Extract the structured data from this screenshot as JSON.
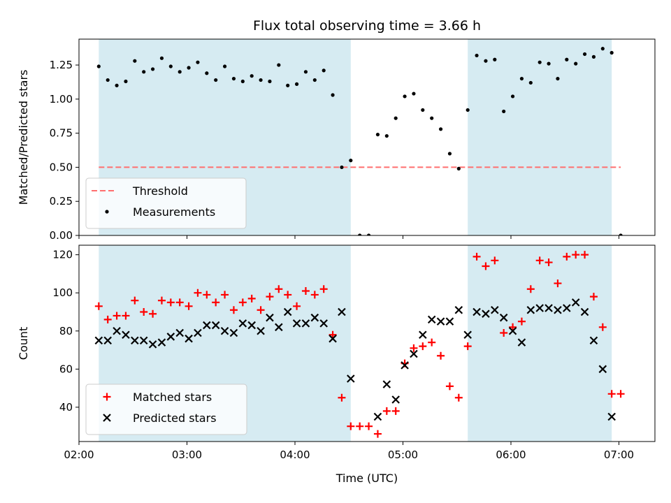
{
  "chart_data": {
    "type": "scatter",
    "title": "Flux total observing time = 3.66 h",
    "xlabel": "Time (UTC)",
    "x_unit": "hours UTC",
    "xlim": [
      "02:00",
      "07:20"
    ],
    "xticks": [
      {
        "value": "02:00",
        "label": "02:00"
      },
      {
        "value": "03:00",
        "label": "03:00"
      },
      {
        "value": "04:00",
        "label": "04:00"
      },
      {
        "value": "05:00",
        "label": "05:00"
      },
      {
        "value": "06:00",
        "label": "06:00"
      },
      {
        "value": "07:00",
        "label": "07:00"
      }
    ],
    "shaded_regions": [
      {
        "start": "02:11",
        "end": "04:31",
        "color": "#add8e6"
      },
      {
        "start": "05:36",
        "end": "06:56",
        "color": "#add8e6"
      }
    ],
    "panels": [
      {
        "ylabel": "Matched/Predicted stars",
        "ylim": [
          0,
          1.44
        ],
        "yticks": [
          {
            "value": 0.0,
            "label": "0.00"
          },
          {
            "value": 0.25,
            "label": "0.25"
          },
          {
            "value": 0.5,
            "label": "0.50"
          },
          {
            "value": 0.75,
            "label": "0.75"
          },
          {
            "value": 1.0,
            "label": "1.00"
          },
          {
            "value": 1.25,
            "label": "1.25"
          }
        ],
        "legend_position": "lower-left",
        "series": [
          {
            "name": "Threshold",
            "kind": "line",
            "color": "#ff6e6e",
            "style": "dashed",
            "points": [
              {
                "x": "02:11",
                "y": 0.5
              },
              {
                "x": "07:01",
                "y": 0.5
              }
            ]
          },
          {
            "name": "Measurements",
            "kind": "dot",
            "color": "#000000",
            "points": [
              {
                "x": "02:11",
                "y": 1.24
              },
              {
                "x": "02:16",
                "y": 1.14
              },
              {
                "x": "02:21",
                "y": 1.1
              },
              {
                "x": "02:26",
                "y": 1.13
              },
              {
                "x": "02:31",
                "y": 1.28
              },
              {
                "x": "02:36",
                "y": 1.2
              },
              {
                "x": "02:41",
                "y": 1.22
              },
              {
                "x": "02:46",
                "y": 1.3
              },
              {
                "x": "02:51",
                "y": 1.24
              },
              {
                "x": "02:56",
                "y": 1.2
              },
              {
                "x": "03:01",
                "y": 1.23
              },
              {
                "x": "03:06",
                "y": 1.27
              },
              {
                "x": "03:11",
                "y": 1.19
              },
              {
                "x": "03:16",
                "y": 1.14
              },
              {
                "x": "03:21",
                "y": 1.24
              },
              {
                "x": "03:26",
                "y": 1.15
              },
              {
                "x": "03:31",
                "y": 1.13
              },
              {
                "x": "03:36",
                "y": 1.17
              },
              {
                "x": "03:41",
                "y": 1.14
              },
              {
                "x": "03:46",
                "y": 1.13
              },
              {
                "x": "03:51",
                "y": 1.25
              },
              {
                "x": "03:56",
                "y": 1.1
              },
              {
                "x": "04:01",
                "y": 1.11
              },
              {
                "x": "04:06",
                "y": 1.2
              },
              {
                "x": "04:11",
                "y": 1.14
              },
              {
                "x": "04:16",
                "y": 1.21
              },
              {
                "x": "04:21",
                "y": 1.03
              },
              {
                "x": "04:26",
                "y": 0.5
              },
              {
                "x": "04:31",
                "y": 0.55
              },
              {
                "x": "04:36",
                "y": 0.0
              },
              {
                "x": "04:41",
                "y": 0.0
              },
              {
                "x": "04:46",
                "y": 0.74
              },
              {
                "x": "04:51",
                "y": 0.73
              },
              {
                "x": "04:56",
                "y": 0.86
              },
              {
                "x": "05:01",
                "y": 1.02
              },
              {
                "x": "05:06",
                "y": 1.04
              },
              {
                "x": "05:11",
                "y": 0.92
              },
              {
                "x": "05:16",
                "y": 0.86
              },
              {
                "x": "05:21",
                "y": 0.78
              },
              {
                "x": "05:26",
                "y": 0.6
              },
              {
                "x": "05:31",
                "y": 0.49
              },
              {
                "x": "05:36",
                "y": 0.92
              },
              {
                "x": "05:41",
                "y": 1.32
              },
              {
                "x": "05:46",
                "y": 1.28
              },
              {
                "x": "05:51",
                "y": 1.29
              },
              {
                "x": "05:56",
                "y": 0.91
              },
              {
                "x": "06:01",
                "y": 1.02
              },
              {
                "x": "06:06",
                "y": 1.15
              },
              {
                "x": "06:11",
                "y": 1.12
              },
              {
                "x": "06:16",
                "y": 1.27
              },
              {
                "x": "06:21",
                "y": 1.26
              },
              {
                "x": "06:26",
                "y": 1.15
              },
              {
                "x": "06:31",
                "y": 1.29
              },
              {
                "x": "06:36",
                "y": 1.26
              },
              {
                "x": "06:41",
                "y": 1.33
              },
              {
                "x": "06:46",
                "y": 1.31
              },
              {
                "x": "06:51",
                "y": 1.37
              },
              {
                "x": "06:56",
                "y": 1.34
              },
              {
                "x": "07:01",
                "y": 0.0
              }
            ]
          }
        ]
      },
      {
        "ylabel": "Count",
        "ylim": [
          22,
          125
        ],
        "yticks": [
          {
            "value": 40,
            "label": "40"
          },
          {
            "value": 60,
            "label": "60"
          },
          {
            "value": 80,
            "label": "80"
          },
          {
            "value": 100,
            "label": "100"
          },
          {
            "value": 120,
            "label": "120"
          }
        ],
        "legend_position": "lower-left",
        "series": [
          {
            "name": "Matched stars",
            "kind": "plus",
            "color": "#ff0000",
            "points": [
              {
                "x": "02:11",
                "y": 93
              },
              {
                "x": "02:16",
                "y": 86
              },
              {
                "x": "02:21",
                "y": 88
              },
              {
                "x": "02:26",
                "y": 88
              },
              {
                "x": "02:31",
                "y": 96
              },
              {
                "x": "02:36",
                "y": 90
              },
              {
                "x": "02:41",
                "y": 89
              },
              {
                "x": "02:46",
                "y": 96
              },
              {
                "x": "02:51",
                "y": 95
              },
              {
                "x": "02:56",
                "y": 95
              },
              {
                "x": "03:01",
                "y": 93
              },
              {
                "x": "03:06",
                "y": 100
              },
              {
                "x": "03:11",
                "y": 99
              },
              {
                "x": "03:16",
                "y": 95
              },
              {
                "x": "03:21",
                "y": 99
              },
              {
                "x": "03:26",
                "y": 91
              },
              {
                "x": "03:31",
                "y": 95
              },
              {
                "x": "03:36",
                "y": 97
              },
              {
                "x": "03:41",
                "y": 91
              },
              {
                "x": "03:46",
                "y": 98
              },
              {
                "x": "03:51",
                "y": 102
              },
              {
                "x": "03:56",
                "y": 99
              },
              {
                "x": "04:01",
                "y": 93
              },
              {
                "x": "04:06",
                "y": 101
              },
              {
                "x": "04:11",
                "y": 99
              },
              {
                "x": "04:16",
                "y": 102
              },
              {
                "x": "04:21",
                "y": 78
              },
              {
                "x": "04:26",
                "y": 45
              },
              {
                "x": "04:31",
                "y": 30
              },
              {
                "x": "04:36",
                "y": 30
              },
              {
                "x": "04:41",
                "y": 30
              },
              {
                "x": "04:46",
                "y": 26
              },
              {
                "x": "04:51",
                "y": 38
              },
              {
                "x": "04:56",
                "y": 38
              },
              {
                "x": "05:01",
                "y": 63
              },
              {
                "x": "05:06",
                "y": 71
              },
              {
                "x": "05:11",
                "y": 72
              },
              {
                "x": "05:16",
                "y": 74
              },
              {
                "x": "05:21",
                "y": 67
              },
              {
                "x": "05:26",
                "y": 51
              },
              {
                "x": "05:31",
                "y": 45
              },
              {
                "x": "05:36",
                "y": 72
              },
              {
                "x": "05:41",
                "y": 119
              },
              {
                "x": "05:46",
                "y": 114
              },
              {
                "x": "05:51",
                "y": 117
              },
              {
                "x": "05:56",
                "y": 79
              },
              {
                "x": "06:01",
                "y": 82
              },
              {
                "x": "06:06",
                "y": 85
              },
              {
                "x": "06:11",
                "y": 102
              },
              {
                "x": "06:16",
                "y": 117
              },
              {
                "x": "06:21",
                "y": 116
              },
              {
                "x": "06:26",
                "y": 105
              },
              {
                "x": "06:31",
                "y": 119
              },
              {
                "x": "06:36",
                "y": 120
              },
              {
                "x": "06:41",
                "y": 120
              },
              {
                "x": "06:46",
                "y": 98
              },
              {
                "x": "06:51",
                "y": 82
              },
              {
                "x": "06:56",
                "y": 47
              },
              {
                "x": "07:01",
                "y": 47
              }
            ]
          },
          {
            "name": "Predicted stars",
            "kind": "cross",
            "color": "#000000",
            "points": [
              {
                "x": "02:11",
                "y": 75
              },
              {
                "x": "02:16",
                "y": 75
              },
              {
                "x": "02:21",
                "y": 80
              },
              {
                "x": "02:26",
                "y": 78
              },
              {
                "x": "02:31",
                "y": 75
              },
              {
                "x": "02:36",
                "y": 75
              },
              {
                "x": "02:41",
                "y": 73
              },
              {
                "x": "02:46",
                "y": 74
              },
              {
                "x": "02:51",
                "y": 77
              },
              {
                "x": "02:56",
                "y": 79
              },
              {
                "x": "03:01",
                "y": 76
              },
              {
                "x": "03:06",
                "y": 79
              },
              {
                "x": "03:11",
                "y": 83
              },
              {
                "x": "03:16",
                "y": 83
              },
              {
                "x": "03:21",
                "y": 80
              },
              {
                "x": "03:26",
                "y": 79
              },
              {
                "x": "03:31",
                "y": 84
              },
              {
                "x": "03:36",
                "y": 83
              },
              {
                "x": "03:41",
                "y": 80
              },
              {
                "x": "03:46",
                "y": 87
              },
              {
                "x": "03:51",
                "y": 82
              },
              {
                "x": "03:56",
                "y": 90
              },
              {
                "x": "04:01",
                "y": 84
              },
              {
                "x": "04:06",
                "y": 84
              },
              {
                "x": "04:11",
                "y": 87
              },
              {
                "x": "04:16",
                "y": 84
              },
              {
                "x": "04:21",
                "y": 76
              },
              {
                "x": "04:26",
                "y": 90
              },
              {
                "x": "04:31",
                "y": 55
              },
              {
                "x": "04:46",
                "y": 35
              },
              {
                "x": "04:51",
                "y": 52
              },
              {
                "x": "04:56",
                "y": 44
              },
              {
                "x": "05:01",
                "y": 62
              },
              {
                "x": "05:06",
                "y": 68
              },
              {
                "x": "05:11",
                "y": 78
              },
              {
                "x": "05:16",
                "y": 86
              },
              {
                "x": "05:21",
                "y": 85
              },
              {
                "x": "05:26",
                "y": 85
              },
              {
                "x": "05:31",
                "y": 91
              },
              {
                "x": "05:36",
                "y": 78
              },
              {
                "x": "05:41",
                "y": 90
              },
              {
                "x": "05:46",
                "y": 89
              },
              {
                "x": "05:51",
                "y": 91
              },
              {
                "x": "05:56",
                "y": 87
              },
              {
                "x": "06:01",
                "y": 80
              },
              {
                "x": "06:06",
                "y": 74
              },
              {
                "x": "06:11",
                "y": 91
              },
              {
                "x": "06:16",
                "y": 92
              },
              {
                "x": "06:21",
                "y": 92
              },
              {
                "x": "06:26",
                "y": 91
              },
              {
                "x": "06:31",
                "y": 92
              },
              {
                "x": "06:36",
                "y": 95
              },
              {
                "x": "06:41",
                "y": 90
              },
              {
                "x": "06:46",
                "y": 75
              },
              {
                "x": "06:51",
                "y": 60
              },
              {
                "x": "06:56",
                "y": 35
              }
            ]
          }
        ]
      }
    ]
  }
}
